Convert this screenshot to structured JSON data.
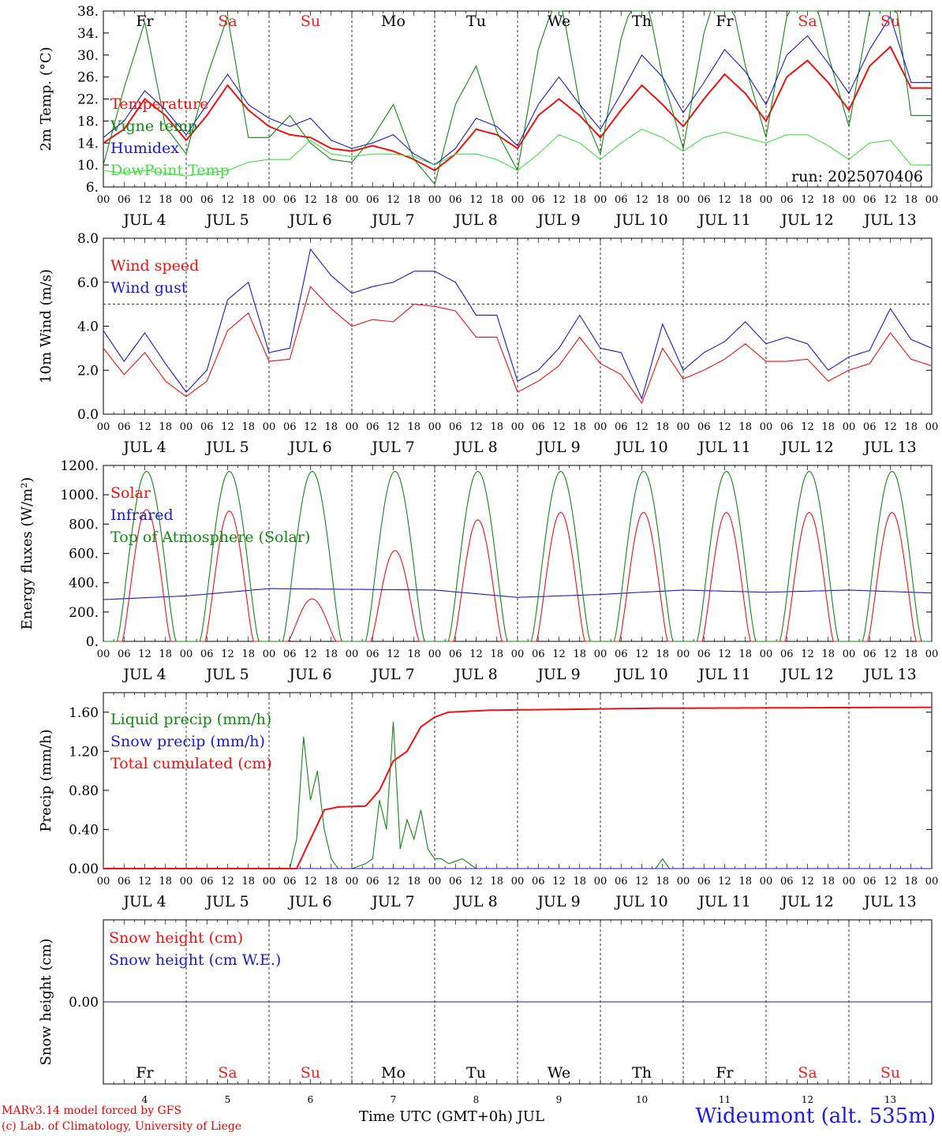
{
  "run_label": "run: 2025070406",
  "footer": {
    "model": "MARv3.14 model forced by GFS",
    "lab": "(c) Lab. of Climatology, University of Liege",
    "xaxis": "Time UTC (GMT+0h) JUL",
    "station": "Wideumont (alt. 535m)"
  },
  "hour_labels": [
    "00",
    "06",
    "12",
    "18"
  ],
  "date_labels": [
    "JUL  4",
    "JUL  5",
    "JUL  6",
    "JUL  7",
    "JUL  8",
    "JUL  9",
    "JUL 10",
    "JUL 11",
    "JUL 12",
    "JUL 13"
  ],
  "day_numbers": [
    "4",
    "5",
    "6",
    "7",
    "8",
    "9",
    "10",
    "11",
    "12",
    "13"
  ],
  "weekdays": [
    "Fr",
    "Sa",
    "Su",
    "Mo",
    "Tu",
    "We",
    "Th",
    "Fr",
    "Sa",
    "Su"
  ],
  "weekend_color": "#ee2222",
  "chart_data": [
    {
      "type": "line",
      "ylabel": "2m Temp. (°C)",
      "ylim": [
        6,
        38
      ],
      "yticks": [
        "6.",
        "10.",
        "14.",
        "18.",
        "22.",
        "26.",
        "30.",
        "34.",
        "38."
      ],
      "grid": "vertical dashed day lines",
      "legend_placement": "left",
      "series": [
        {
          "name": "Temperature",
          "color": "#ee1111",
          "x": [
            0,
            6,
            12,
            18,
            24,
            30,
            36,
            42,
            48,
            54,
            60,
            66,
            72,
            78,
            84,
            90,
            96,
            102,
            108,
            114,
            120,
            126,
            132,
            138,
            144,
            150,
            156,
            162,
            168,
            174,
            180,
            186,
            192,
            198,
            204,
            210,
            216,
            222,
            228,
            234
          ],
          "values": [
            14,
            16.5,
            22,
            19,
            14.5,
            19,
            24.5,
            20,
            17,
            15.5,
            15,
            13,
            12.5,
            13.5,
            12.5,
            11,
            9,
            12,
            16.5,
            15.5,
            13,
            19,
            22,
            19,
            15,
            20,
            24.5,
            21,
            17,
            22,
            26.5,
            23,
            18,
            26,
            29,
            25,
            20,
            28,
            31.5,
            24
          ]
        },
        {
          "name": "Vigne temp",
          "color": "#118811",
          "x": [
            0,
            6,
            12,
            18,
            24,
            30,
            36,
            42,
            48,
            54,
            60,
            66,
            72,
            78,
            84,
            90,
            96,
            102,
            108,
            114,
            120,
            126,
            132,
            138,
            144,
            150,
            156,
            162,
            168,
            174,
            180,
            186,
            192,
            198,
            204,
            210,
            216,
            222,
            228,
            234
          ],
          "values": [
            10,
            24,
            36,
            17,
            12,
            26,
            37,
            15,
            15,
            19,
            14,
            11,
            10.5,
            15,
            21,
            11,
            6.5,
            21,
            28,
            16,
            9,
            31,
            42,
            21,
            12,
            33,
            45,
            26,
            13,
            34,
            46,
            28,
            15,
            37,
            47,
            30,
            17,
            38,
            47,
            19
          ]
        },
        {
          "name": "Humidex",
          "color": "#1a1acc",
          "x": [
            0,
            6,
            12,
            18,
            24,
            30,
            36,
            42,
            48,
            54,
            60,
            66,
            72,
            78,
            84,
            90,
            96,
            102,
            108,
            114,
            120,
            126,
            132,
            138,
            144,
            150,
            156,
            162,
            168,
            174,
            180,
            186,
            192,
            198,
            204,
            210,
            216,
            222,
            228,
            234
          ],
          "values": [
            15,
            18,
            23.5,
            20,
            15.5,
            21,
            26.5,
            21,
            18.5,
            17,
            18.5,
            14.5,
            13,
            14,
            15.5,
            12,
            10,
            13,
            18.5,
            17,
            13.5,
            21,
            26,
            21,
            16.5,
            23,
            30,
            26,
            19.5,
            25,
            31,
            27,
            21,
            30,
            33.5,
            28.5,
            23,
            31,
            37,
            25
          ]
        },
        {
          "name": "DewPoint Temp",
          "color": "#44dd44",
          "x": [
            0,
            6,
            12,
            18,
            24,
            30,
            36,
            42,
            48,
            54,
            60,
            66,
            72,
            78,
            84,
            90,
            96,
            102,
            108,
            114,
            120,
            126,
            132,
            138,
            144,
            150,
            156,
            162,
            168,
            174,
            180,
            186,
            192,
            198,
            204,
            210,
            216,
            222,
            228,
            234
          ],
          "values": [
            9,
            8.5,
            9,
            8.5,
            8,
            8.5,
            9,
            10.5,
            11,
            11,
            14.5,
            12,
            11.5,
            12,
            12,
            11.5,
            10,
            12,
            12,
            11,
            9,
            12,
            15.5,
            14,
            11,
            14,
            16.5,
            15,
            12.5,
            15,
            16,
            15,
            14,
            15.5,
            15.5,
            13.5,
            11,
            14,
            14.5,
            10
          ]
        }
      ]
    },
    {
      "type": "line",
      "ylabel": "10m Wind (m/s)",
      "ylim": [
        0,
        8
      ],
      "yticks": [
        "0.0",
        "2.0",
        "4.0",
        "6.0",
        "8.0"
      ],
      "reference_line": 5,
      "legend_placement": "left",
      "series": [
        {
          "name": "Wind speed",
          "color": "#ee1111",
          "x": [
            0,
            6,
            12,
            18,
            24,
            30,
            36,
            42,
            48,
            54,
            60,
            66,
            72,
            78,
            84,
            90,
            96,
            102,
            108,
            114,
            120,
            126,
            132,
            138,
            144,
            150,
            156,
            162,
            168,
            174,
            180,
            186,
            192,
            198,
            204,
            210,
            216,
            222,
            228,
            234,
            240
          ],
          "values": [
            3,
            1.8,
            2.8,
            1.5,
            0.8,
            1.5,
            3.8,
            4.6,
            2.4,
            2.5,
            5.8,
            4.8,
            4,
            4.3,
            4.2,
            5,
            4.9,
            4.7,
            3.5,
            3.5,
            1,
            1.5,
            2.2,
            3.5,
            2.3,
            1.8,
            0.5,
            3,
            1.6,
            2,
            2.5,
            3.2,
            2.4,
            2.4,
            2.5,
            1.5,
            2,
            2.3,
            3.7,
            2.5,
            2.2
          ]
        },
        {
          "name": "Wind gust",
          "color": "#1a1acc",
          "x": [
            0,
            6,
            12,
            18,
            24,
            30,
            36,
            42,
            48,
            54,
            60,
            66,
            72,
            78,
            84,
            90,
            96,
            102,
            108,
            114,
            120,
            126,
            132,
            138,
            144,
            150,
            156,
            162,
            168,
            174,
            180,
            186,
            192,
            198,
            204,
            210,
            216,
            222,
            228,
            234,
            240
          ],
          "values": [
            3.8,
            2.4,
            3.7,
            2.3,
            1,
            2,
            5.2,
            6,
            2.8,
            3,
            7.5,
            6.3,
            5.5,
            5.8,
            6,
            6.5,
            6.5,
            6,
            4.5,
            4.5,
            1.5,
            2,
            3,
            4.5,
            3,
            2.8,
            0.7,
            4.1,
            2,
            2.8,
            3.3,
            4.2,
            3.2,
            3.5,
            3.2,
            2,
            2.6,
            2.9,
            4.8,
            3.4,
            3
          ]
        }
      ]
    },
    {
      "type": "line",
      "ylabel": "Energy fluxes (W/m²)",
      "ylim": [
        0,
        1200
      ],
      "yticks": [
        "0.",
        "200.",
        "400.",
        "600.",
        "800.",
        "1000.",
        "1200."
      ],
      "legend_placement": "left",
      "series": [
        {
          "name": "Solar",
          "color": "#ee1111",
          "daily_peak": [
            900,
            890,
            290,
            620,
            830,
            880,
            880,
            880,
            880,
            880
          ]
        },
        {
          "name": "Infrared",
          "color": "#1a1acc",
          "x": [
            0,
            24,
            48,
            72,
            96,
            120,
            144,
            168,
            192,
            216,
            240
          ],
          "values": [
            285,
            310,
            360,
            355,
            350,
            300,
            320,
            350,
            335,
            350,
            330
          ]
        },
        {
          "name": "Top of Atmosphere (Solar)",
          "color": "#118811",
          "daily_peak": [
            1160,
            1160,
            1160,
            1160,
            1160,
            1160,
            1160,
            1160,
            1160,
            1160
          ]
        }
      ]
    },
    {
      "type": "line",
      "ylabel": "Precip (mm/h)",
      "ylim": [
        0,
        1.8
      ],
      "yticks": [
        "0.00",
        "0.40",
        "0.80",
        "1.20",
        "1.60"
      ],
      "legend_placement": "left",
      "series": [
        {
          "name": "Liquid precip (mm/h)",
          "color": "#118811",
          "x": [
            0,
            54,
            56,
            58,
            60,
            62,
            64,
            66,
            68,
            72,
            76,
            78,
            80,
            82,
            84,
            86,
            88,
            90,
            92,
            94,
            96,
            98,
            100,
            104,
            108,
            120,
            160,
            162,
            164,
            240
          ],
          "values": [
            0,
            0,
            0.3,
            1.35,
            0.7,
            1,
            0.4,
            0.1,
            0,
            0,
            0.05,
            0.1,
            0.7,
            0.4,
            1.5,
            0.2,
            0.5,
            0.3,
            0.6,
            0.2,
            0.1,
            0.1,
            0.05,
            0.1,
            0,
            0,
            0,
            0.1,
            0,
            0
          ]
        },
        {
          "name": "Snow precip (mm/h)",
          "color": "#1a1acc",
          "x": [
            0,
            240
          ],
          "values": [
            0,
            0
          ]
        },
        {
          "name": "Total cumulated (cm)",
          "color": "#ee1111",
          "x": [
            0,
            56,
            60,
            64,
            68,
            76,
            80,
            84,
            88,
            92,
            96,
            100,
            112,
            160,
            240
          ],
          "values": [
            0,
            0,
            0.3,
            0.6,
            0.63,
            0.64,
            0.8,
            1.1,
            1.2,
            1.45,
            1.55,
            1.6,
            1.62,
            1.64,
            1.65
          ]
        }
      ]
    },
    {
      "type": "line",
      "ylabel": "Snow height (cm)",
      "ylim": [
        -1,
        1
      ],
      "yticks": [
        "0.00"
      ],
      "legend_placement": "left",
      "series": [
        {
          "name": "Snow height (cm)",
          "color": "#ee1111",
          "x": [
            0,
            240
          ],
          "values": [
            0,
            0
          ]
        },
        {
          "name": "Snow height (cm W.E.)",
          "color": "#1a1acc",
          "x": [
            0,
            240
          ],
          "values": [
            0,
            0
          ]
        }
      ]
    }
  ]
}
